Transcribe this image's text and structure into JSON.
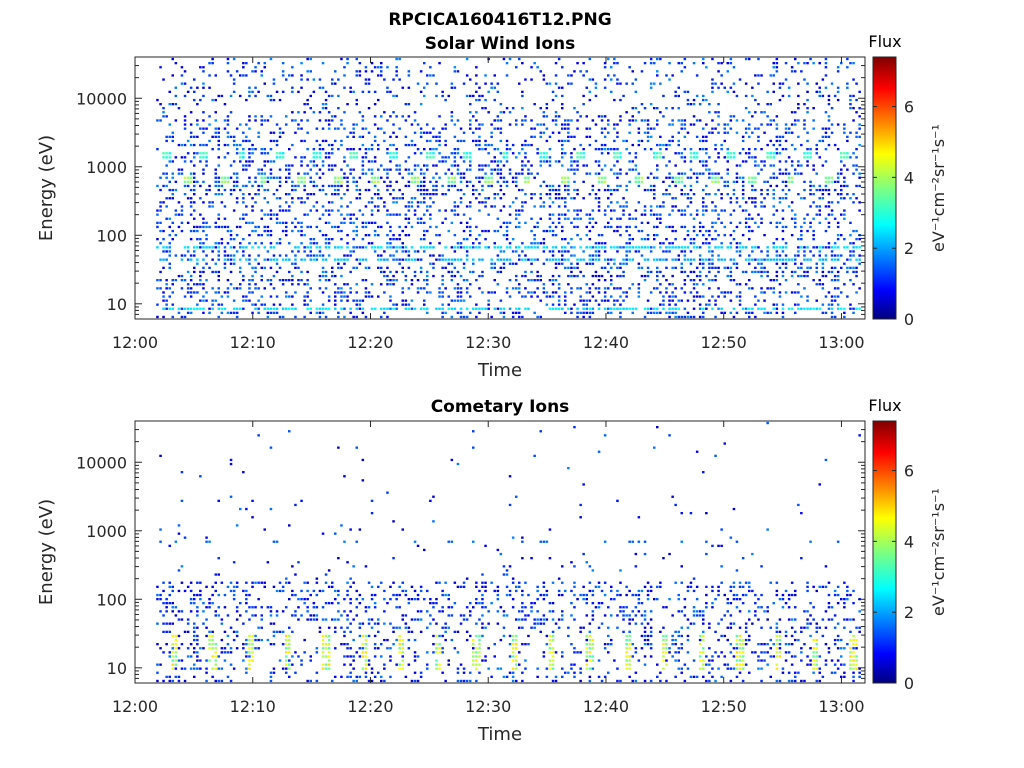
{
  "figure_title": "RPCICA160416T12.PNG",
  "colorbar": {
    "title": "Flux",
    "unit_label": "eV⁻¹cm⁻²sr⁻¹s⁻¹",
    "range": [
      0,
      7.4
    ],
    "tick_values": [
      0,
      2,
      4,
      6
    ],
    "tick_labels": [
      "0",
      "2",
      "4",
      "6"
    ],
    "colormap": "jet"
  },
  "chart_data": [
    {
      "type": "heatmap",
      "title": "Solar Wind Ions",
      "xlabel": "Time",
      "ylabel": "Energy (eV)",
      "x_ticks": [
        "12:00",
        "12:10",
        "12:20",
        "12:30",
        "12:40",
        "12:50",
        "13:00"
      ],
      "xlim_minutes": [
        0,
        62
      ],
      "y_scale": "log",
      "ylim": [
        6,
        40000
      ],
      "y_ticks": [
        10,
        100,
        1000,
        10000
      ],
      "y_tick_labels": [
        "10",
        "100",
        "1000",
        "10000"
      ],
      "data_start_minute": 1.8,
      "features": [
        {
          "desc": "periodic bursts",
          "energy": 650,
          "flux": 3.7,
          "period_min": 3.2,
          "start_min": 4.0
        },
        {
          "desc": "periodic bursts",
          "energy": 1500,
          "flux": 3.0,
          "period_min": 3.2,
          "start_min": 2.2
        },
        {
          "desc": "band",
          "energy": 70,
          "flux": 2.5
        },
        {
          "desc": "band",
          "energy": 42,
          "flux": 2.3
        },
        {
          "desc": "band",
          "energy": 9,
          "flux": 2.6
        }
      ]
    },
    {
      "type": "heatmap",
      "title": "Cometary Ions",
      "xlabel": "Time",
      "ylabel": "Energy (eV)",
      "x_ticks": [
        "12:00",
        "12:10",
        "12:20",
        "12:30",
        "12:40",
        "12:50",
        "13:00"
      ],
      "xlim_minutes": [
        0,
        62
      ],
      "y_scale": "log",
      "ylim": [
        6,
        40000
      ],
      "y_ticks": [
        10,
        100,
        1000,
        10000
      ],
      "y_tick_labels": [
        "10",
        "100",
        "1000",
        "10000"
      ],
      "data_start_minute": 1.8,
      "features": [
        {
          "desc": "periodic bursts",
          "energy_range": [
            9,
            30
          ],
          "flux": 4.5,
          "period_min": 3.2,
          "start_min": 3.0
        },
        {
          "desc": "band",
          "energy": 650,
          "flux": 1.5
        },
        {
          "desc": "band",
          "energy_range": [
            50,
            160
          ],
          "flux": 1.8
        }
      ]
    }
  ]
}
